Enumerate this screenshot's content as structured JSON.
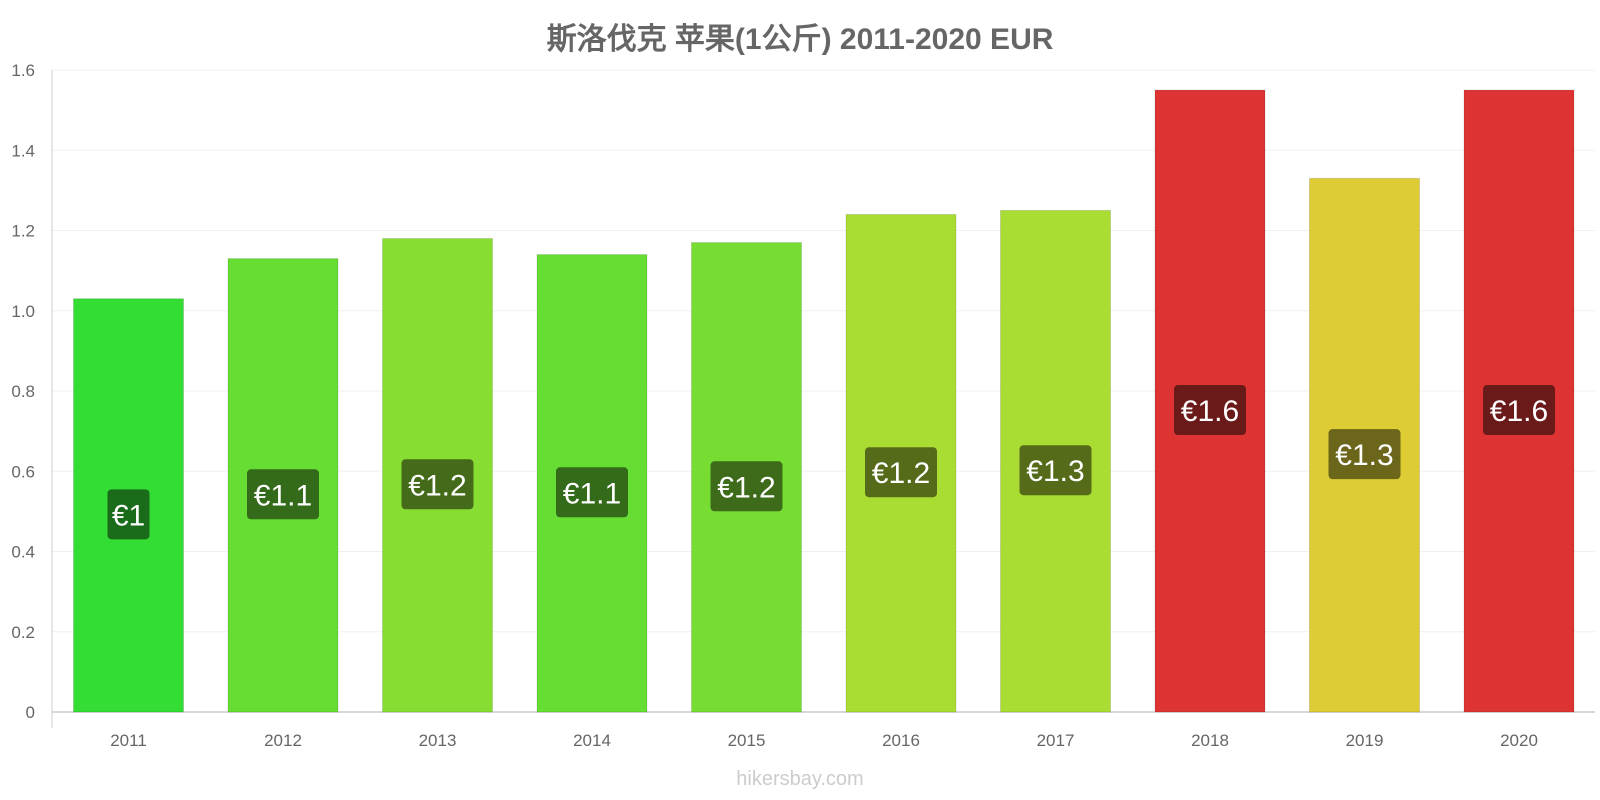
{
  "title": "斯洛伐克 苹果(1公斤) 2011-2020 EUR",
  "watermark": "hikersbay.com",
  "chart_data": {
    "type": "bar",
    "title": "斯洛伐克 苹果(1公斤) 2011-2020 EUR",
    "xlabel": "",
    "ylabel": "",
    "ylim": [
      0,
      1.6
    ],
    "yticks": [
      "0",
      "0.2",
      "0.4",
      "0.6",
      "0.8",
      "1.0",
      "1.2",
      "1.4",
      "1.6"
    ],
    "categories": [
      "2011",
      "2012",
      "2013",
      "2014",
      "2015",
      "2016",
      "2017",
      "2018",
      "2019",
      "2020"
    ],
    "values": [
      1.03,
      1.13,
      1.18,
      1.14,
      1.17,
      1.24,
      1.25,
      1.55,
      1.33,
      1.55
    ],
    "data_labels": [
      "€1",
      "€1.1",
      "€1.2",
      "€1.1",
      "€1.2",
      "€1.2",
      "€1.3",
      "€1.6",
      "€1.3",
      "€1.6"
    ],
    "bar_colors": [
      "#33dd33",
      "#66dd33",
      "#88dd33",
      "#66dd33",
      "#77dd33",
      "#aadd33",
      "#aadd33",
      "#dd3333",
      "#ddcc33",
      "#dd3333"
    ],
    "label_bg_colors": [
      "#1a6b1a",
      "#336b1a",
      "#446b1a",
      "#336b1a",
      "#3d6b1a",
      "#556b1a",
      "#556b1a",
      "#6b1a1a",
      "#6b661a",
      "#6b1a1a"
    ],
    "grid": true,
    "legend": "none"
  }
}
